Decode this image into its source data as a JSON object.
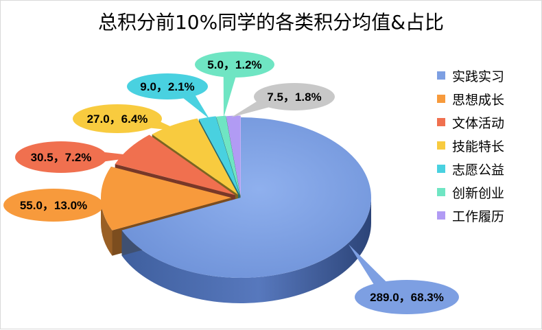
{
  "chart_data": {
    "type": "pie",
    "title": "总积分前10%同学的各类积分均值&占比",
    "categories": [
      "实践实习",
      "思想成长",
      "文体活动",
      "技能特长",
      "志愿公益",
      "创新创业",
      "工作履历"
    ],
    "values": [
      289.0,
      55.0,
      30.5,
      27.0,
      9.0,
      5.0,
      7.5
    ],
    "labels": [
      "289.0，68.3%",
      "55.0，13.0%",
      "30.5，7.2%",
      "27.0，6.4%",
      "9.0，2.1%",
      "5.0，1.2%",
      "7.5，1.8%"
    ],
    "colors": [
      "#7d9fe2",
      "#f79a3c",
      "#f0704f",
      "#f8cb3f",
      "#49d1e0",
      "#6fe5c3",
      "#b19bf4"
    ],
    "legend_position": "right",
    "style": "3d-exploded-callouts"
  }
}
